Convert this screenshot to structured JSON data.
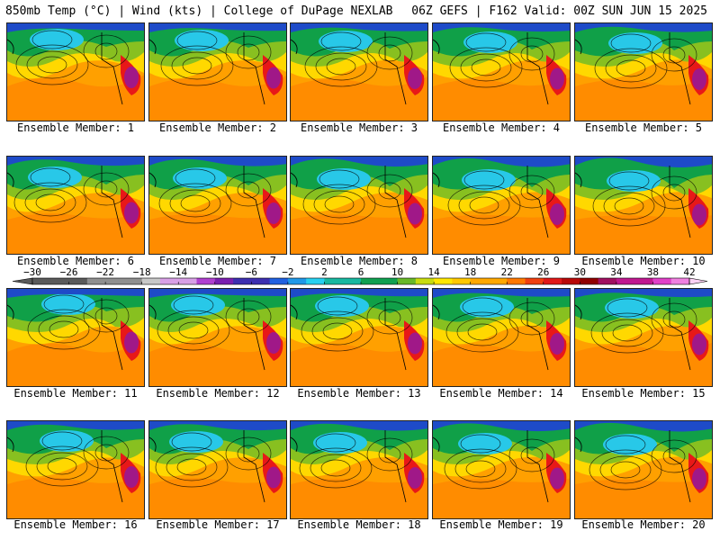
{
  "header": {
    "left": "850mb Temp (°C) | Wind (kts) | College of DuPage NEXLAB",
    "right": "06Z GEFS | F162 Valid: 00Z SUN JUN 15 2025"
  },
  "member_label_prefix": "Ensemble Member:",
  "members": [
    1,
    2,
    3,
    4,
    5,
    6,
    7,
    8,
    9,
    10,
    11,
    12,
    13,
    14,
    15,
    16,
    17,
    18,
    19,
    20
  ],
  "colorbar": {
    "ticks": [
      "-30",
      "-26",
      "-22",
      "-18",
      "-14",
      "-10",
      "-6",
      "-2",
      "2",
      "6",
      "10",
      "14",
      "18",
      "22",
      "26",
      "30",
      "34",
      "38",
      "42"
    ],
    "min": -30,
    "max": 42,
    "step": 2,
    "stops": [
      {
        "v": -30,
        "c": "#5a5a5a"
      },
      {
        "v": -24,
        "c": "#8f8f8f"
      },
      {
        "v": -18,
        "c": "#c8c8c8"
      },
      {
        "v": -16,
        "c": "#d8a0e6"
      },
      {
        "v": -12,
        "c": "#b040d0"
      },
      {
        "v": -10,
        "c": "#7a1fb0"
      },
      {
        "v": -8,
        "c": "#3d2fb0"
      },
      {
        "v": -4,
        "c": "#2060e0"
      },
      {
        "v": -2,
        "c": "#2098e8"
      },
      {
        "v": 0,
        "c": "#28d0f0"
      },
      {
        "v": 2,
        "c": "#18b8a0"
      },
      {
        "v": 6,
        "c": "#10a050"
      },
      {
        "v": 9,
        "c": "#68b828"
      },
      {
        "v": 12,
        "c": "#c8dc10"
      },
      {
        "v": 14,
        "c": "#ffe800"
      },
      {
        "v": 16,
        "c": "#ffc800"
      },
      {
        "v": 18,
        "c": "#ffa800"
      },
      {
        "v": 22,
        "c": "#ff7800"
      },
      {
        "v": 24,
        "c": "#f04010"
      },
      {
        "v": 26,
        "c": "#e01818"
      },
      {
        "v": 28,
        "c": "#b80808"
      },
      {
        "v": 30,
        "c": "#900000"
      },
      {
        "v": 32,
        "c": "#a01060"
      },
      {
        "v": 34,
        "c": "#c01890"
      },
      {
        "v": 38,
        "c": "#e040c8"
      },
      {
        "v": 40,
        "c": "#f080e0"
      },
      {
        "v": 42,
        "c": "#fbd0f4"
      }
    ]
  },
  "map_colors": {
    "north": "#1e4bc8",
    "cold": "#28c8e8",
    "cool": "#10a048",
    "mild": "#88c020",
    "warm": "#ffd800",
    "hot": "#ffa000",
    "south": "#ff8c00",
    "heat": "#e81818",
    "extreme": "#a01888"
  }
}
